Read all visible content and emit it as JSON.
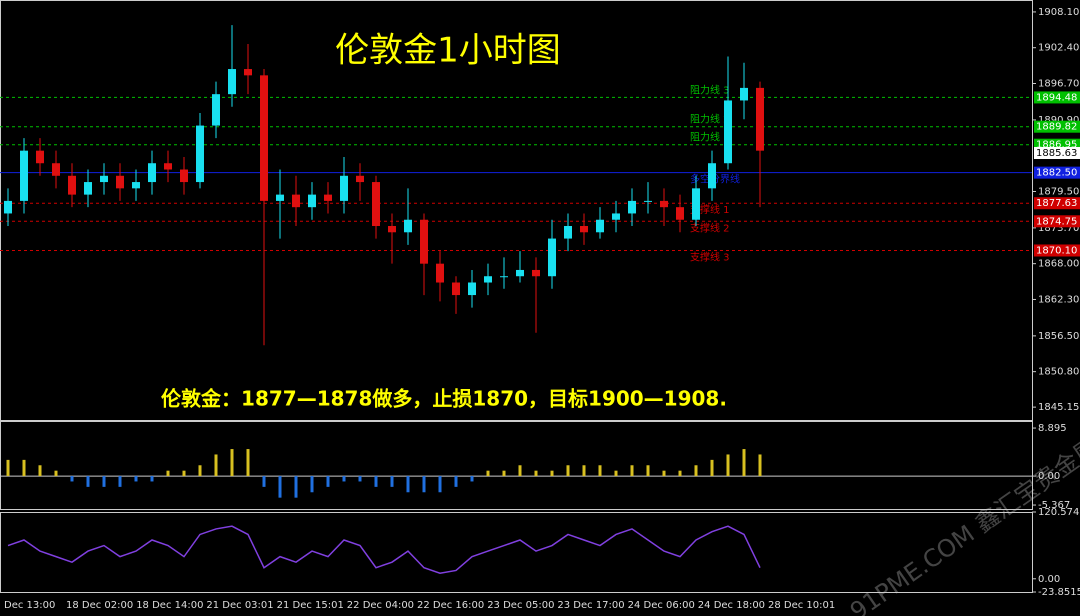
{
  "chart_data": [
    {
      "type": "candlestick",
      "title": "伦敦金1小时图",
      "annotation": "伦敦金：1877—1878做多，止损1870，目标1900—1908.",
      "up_color": "#19e0f0",
      "down_color": "#e01010",
      "open": [
        1876,
        1878,
        1886,
        1884,
        1882,
        1879,
        1881,
        1882,
        1880,
        1881,
        1884,
        1883,
        1881,
        1890,
        1895,
        1899,
        1898,
        1878,
        1879,
        1877,
        1879,
        1878,
        1882,
        1881,
        1874,
        1873,
        1875,
        1868,
        1865,
        1863,
        1865,
        1866,
        1866,
        1867,
        1866,
        1872,
        1874,
        1873,
        1875,
        1876,
        1878,
        1878,
        1877,
        1875,
        1880,
        1884,
        1894,
        1896
      ],
      "high": [
        1880,
        1888,
        1888,
        1886,
        1884,
        1883,
        1884,
        1884,
        1883,
        1886,
        1886,
        1885,
        1892,
        1897,
        1906,
        1903,
        1899,
        1883,
        1882,
        1881,
        1881,
        1885,
        1884,
        1882,
        1876,
        1880,
        1876,
        1870,
        1866,
        1867,
        1868,
        1869,
        1870,
        1869,
        1875,
        1876,
        1876,
        1877,
        1878,
        1880,
        1881,
        1880,
        1879,
        1882,
        1886,
        1901,
        1900,
        1897
      ],
      "low": [
        1874,
        1876,
        1882,
        1880,
        1877,
        1877,
        1879,
        1878,
        1878,
        1879,
        1881,
        1879,
        1880,
        1888,
        1893,
        1895,
        1855,
        1872,
        1874,
        1875,
        1876,
        1876,
        1878,
        1872,
        1868,
        1871,
        1863,
        1862,
        1860,
        1861,
        1863,
        1864,
        1865,
        1857,
        1864,
        1870,
        1871,
        1872,
        1873,
        1874,
        1876,
        1874,
        1873,
        1874,
        1878,
        1883,
        1891,
        1877
      ],
      "close": [
        1878,
        1886,
        1884,
        1882,
        1879,
        1881,
        1882,
        1880,
        1881,
        1884,
        1883,
        1881,
        1890,
        1895,
        1899,
        1898,
        1878,
        1879,
        1877,
        1879,
        1878,
        1882,
        1881,
        1874,
        1873,
        1875,
        1868,
        1865,
        1863,
        1865,
        1866,
        1866,
        1867,
        1866,
        1872,
        1874,
        1873,
        1875,
        1876,
        1878,
        1878,
        1877,
        1875,
        1880,
        1884,
        1894,
        1896,
        1886
      ],
      "ylim": [
        1843.1,
        1910.0
      ],
      "yticks": [
        {
          "value": 1908.1,
          "label": "1908.10"
        },
        {
          "value": 1902.4,
          "label": "1902.40"
        },
        {
          "value": 1896.7,
          "label": "1896.70"
        },
        {
          "value": 1890.9,
          "label": "1890.90"
        },
        {
          "value": 1879.5,
          "label": "1879.50"
        },
        {
          "value": 1873.7,
          "label": "1873.70"
        },
        {
          "value": 1868.0,
          "label": "1868.00"
        },
        {
          "value": 1862.3,
          "label": "1862.30"
        },
        {
          "value": 1856.5,
          "label": "1856.50"
        },
        {
          "value": 1850.8,
          "label": "1850.80"
        },
        {
          "value": 1845.15,
          "label": "1845.15"
        }
      ],
      "levels": [
        {
          "name": "阻力线 3",
          "value": 1894.48,
          "label": "1894.48",
          "color": "#00c000"
        },
        {
          "name": "阻力线 2",
          "value": 1889.82,
          "label": "1889.82",
          "color": "#00c000"
        },
        {
          "name": "阻力线 1",
          "value": 1886.95,
          "label": "1886.95",
          "color": "#00c000"
        },
        {
          "name": "多空分界线",
          "value": 1882.5,
          "label": "1882.50",
          "color": "#1020e0"
        },
        {
          "name": "支撑线 1",
          "value": 1877.63,
          "label": "1877.63",
          "color": "#d00000"
        },
        {
          "name": "支撑线 2",
          "value": 1874.75,
          "label": "1874.75",
          "color": "#d00000"
        },
        {
          "name": "支撑线 3",
          "value": 1870.1,
          "label": "1870.10",
          "color": "#d00000"
        }
      ],
      "last": 1885.63,
      "x_tick_labels": [
        "Dec 13:00",
        "18 Dec 02:00",
        "18 Dec 14:00",
        "21 Dec 03:01",
        "21 Dec 15:01",
        "22 Dec 04:00",
        "22 Dec 16:00",
        "23 Dec 05:00",
        "23 Dec 17:00",
        "24 Dec 06:00",
        "24 Dec 18:00",
        "28 Dec 10:01"
      ]
    },
    {
      "type": "histogram",
      "pos_color": "#d8c020",
      "neg_color": "#2070e0",
      "values": [
        3,
        3,
        2,
        1,
        -1,
        -2,
        -2,
        -2,
        -1,
        -1,
        1,
        1,
        2,
        4,
        5,
        5,
        -2,
        -4,
        -4,
        -3,
        -2,
        -1,
        -1,
        -2,
        -2,
        -3,
        -3,
        -3,
        -2,
        -1,
        1,
        1,
        2,
        1,
        1,
        2,
        2,
        2,
        1,
        2,
        2,
        1,
        1,
        2,
        3,
        4,
        5,
        4
      ],
      "ylim": [
        -6.1,
        10.2
      ],
      "yticks": [
        8.895,
        {
          "value": 0,
          "label": "0.00"
        },
        -5.367
      ]
    },
    {
      "type": "line",
      "color": "#8040e0",
      "values": [
        60,
        70,
        50,
        40,
        30,
        50,
        60,
        40,
        50,
        70,
        60,
        40,
        80,
        90,
        95,
        80,
        20,
        40,
        30,
        50,
        40,
        70,
        60,
        20,
        30,
        50,
        20,
        10,
        15,
        40,
        50,
        60,
        70,
        50,
        60,
        80,
        70,
        60,
        80,
        90,
        70,
        50,
        40,
        70,
        85,
        95,
        80,
        20
      ],
      "ylim": [
        -23.8515,
        120.5749
      ],
      "yticks": [
        120.5749,
        {
          "value": 0,
          "label": "0.00"
        },
        -23.8515
      ]
    }
  ],
  "watermark": "91PME.COM 鑫汇宝贵金属"
}
